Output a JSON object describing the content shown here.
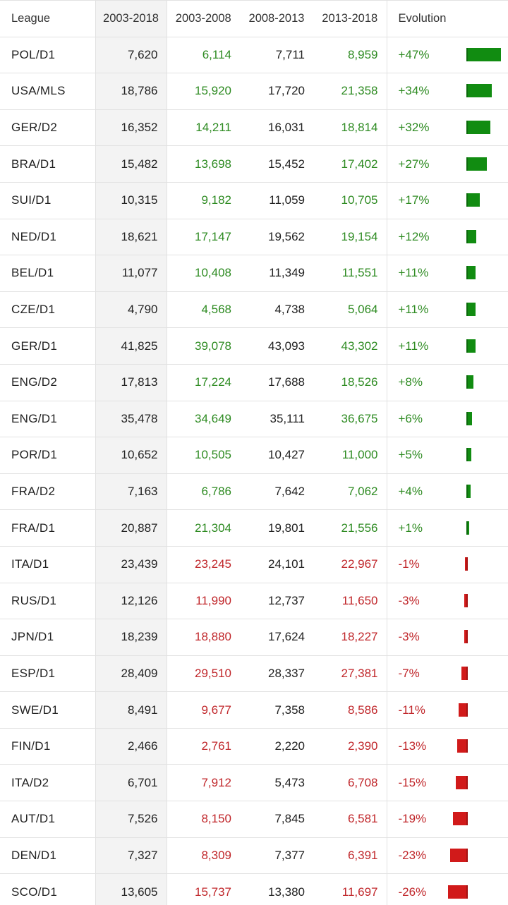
{
  "table": {
    "headers": {
      "league": "League",
      "total": "2003-2018",
      "p1": "2003-2008",
      "p2": "2008-2013",
      "p3": "2013-2018",
      "evolution": "Evolution"
    },
    "colors": {
      "positive": "#2e8b22",
      "negative": "#c0262a",
      "bar_positive": "#118c11",
      "bar_negative": "#d11a1a",
      "total_column_bg": "#f3f3f3"
    },
    "rows": [
      {
        "league": "POL/D1",
        "total": "7,620",
        "p1": "6,114",
        "p2": "7,711",
        "p3": "8,959",
        "evolution": "+47%",
        "evo_value": 47
      },
      {
        "league": "USA/MLS",
        "total": "18,786",
        "p1": "15,920",
        "p2": "17,720",
        "p3": "21,358",
        "evolution": "+34%",
        "evo_value": 34
      },
      {
        "league": "GER/D2",
        "total": "16,352",
        "p1": "14,211",
        "p2": "16,031",
        "p3": "18,814",
        "evolution": "+32%",
        "evo_value": 32
      },
      {
        "league": "BRA/D1",
        "total": "15,482",
        "p1": "13,698",
        "p2": "15,452",
        "p3": "17,402",
        "evolution": "+27%",
        "evo_value": 27
      },
      {
        "league": "SUI/D1",
        "total": "10,315",
        "p1": "9,182",
        "p2": "11,059",
        "p3": "10,705",
        "evolution": "+17%",
        "evo_value": 17
      },
      {
        "league": "NED/D1",
        "total": "18,621",
        "p1": "17,147",
        "p2": "19,562",
        "p3": "19,154",
        "evolution": "+12%",
        "evo_value": 12
      },
      {
        "league": "BEL/D1",
        "total": "11,077",
        "p1": "10,408",
        "p2": "11,349",
        "p3": "11,551",
        "evolution": "+11%",
        "evo_value": 11
      },
      {
        "league": "CZE/D1",
        "total": "4,790",
        "p1": "4,568",
        "p2": "4,738",
        "p3": "5,064",
        "evolution": "+11%",
        "evo_value": 11
      },
      {
        "league": "GER/D1",
        "total": "41,825",
        "p1": "39,078",
        "p2": "43,093",
        "p3": "43,302",
        "evolution": "+11%",
        "evo_value": 11
      },
      {
        "league": "ENG/D2",
        "total": "17,813",
        "p1": "17,224",
        "p2": "17,688",
        "p3": "18,526",
        "evolution": "+8%",
        "evo_value": 8
      },
      {
        "league": "ENG/D1",
        "total": "35,478",
        "p1": "34,649",
        "p2": "35,111",
        "p3": "36,675",
        "evolution": "+6%",
        "evo_value": 6
      },
      {
        "league": "POR/D1",
        "total": "10,652",
        "p1": "10,505",
        "p2": "10,427",
        "p3": "11,000",
        "evolution": "+5%",
        "evo_value": 5
      },
      {
        "league": "FRA/D2",
        "total": "7,163",
        "p1": "6,786",
        "p2": "7,642",
        "p3": "7,062",
        "evolution": "+4%",
        "evo_value": 4
      },
      {
        "league": "FRA/D1",
        "total": "20,887",
        "p1": "21,304",
        "p2": "19,801",
        "p3": "21,556",
        "evolution": "+1%",
        "evo_value": 1
      },
      {
        "league": "ITA/D1",
        "total": "23,439",
        "p1": "23,245",
        "p2": "24,101",
        "p3": "22,967",
        "evolution": "-1%",
        "evo_value": -1
      },
      {
        "league": "RUS/D1",
        "total": "12,126",
        "p1": "11,990",
        "p2": "12,737",
        "p3": "11,650",
        "evolution": "-3%",
        "evo_value": -3
      },
      {
        "league": "JPN/D1",
        "total": "18,239",
        "p1": "18,880",
        "p2": "17,624",
        "p3": "18,227",
        "evolution": "-3%",
        "evo_value": -3
      },
      {
        "league": "ESP/D1",
        "total": "28,409",
        "p1": "29,510",
        "p2": "28,337",
        "p3": "27,381",
        "evolution": "-7%",
        "evo_value": -7
      },
      {
        "league": "SWE/D1",
        "total": "8,491",
        "p1": "9,677",
        "p2": "7,358",
        "p3": "8,586",
        "evolution": "-11%",
        "evo_value": -11
      },
      {
        "league": "FIN/D1",
        "total": "2,466",
        "p1": "2,761",
        "p2": "2,220",
        "p3": "2,390",
        "evolution": "-13%",
        "evo_value": -13
      },
      {
        "league": "ITA/D2",
        "total": "6,701",
        "p1": "7,912",
        "p2": "5,473",
        "p3": "6,708",
        "evolution": "-15%",
        "evo_value": -15
      },
      {
        "league": "AUT/D1",
        "total": "7,526",
        "p1": "8,150",
        "p2": "7,845",
        "p3": "6,581",
        "evolution": "-19%",
        "evo_value": -19
      },
      {
        "league": "DEN/D1",
        "total": "7,327",
        "p1": "8,309",
        "p2": "7,377",
        "p3": "6,391",
        "evolution": "-23%",
        "evo_value": -23
      },
      {
        "league": "SCO/D1",
        "total": "13,605",
        "p1": "15,737",
        "p2": "13,380",
        "p3": "11,697",
        "evolution": "-26%",
        "evo_value": -26
      }
    ]
  }
}
